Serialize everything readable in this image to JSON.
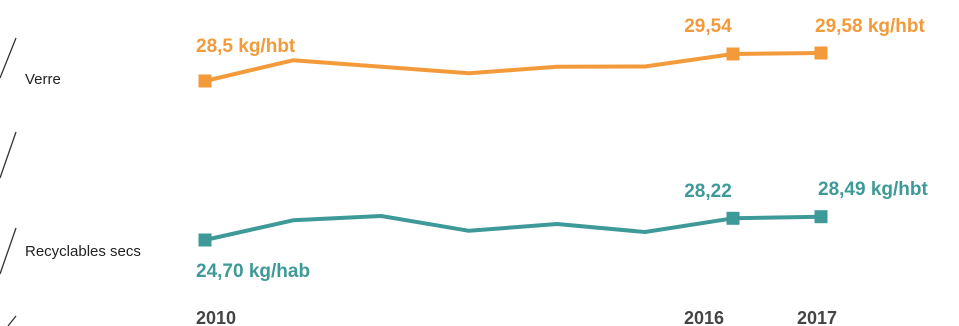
{
  "chart_data": {
    "type": "line",
    "x": [
      2010,
      2011,
      2012,
      2013,
      2014,
      2015,
      2016,
      2017
    ],
    "x_tick_labels": [
      "2010",
      "",
      "",
      "",
      "",
      "",
      "2016",
      "2017"
    ],
    "series": [
      {
        "name": "Verre",
        "color": "#f39a3b",
        "values": [
          28.5,
          29.3,
          29.05,
          28.8,
          29.05,
          29.06,
          29.54,
          29.58
        ],
        "markers": [
          0,
          6,
          7
        ],
        "labels": [
          "28,5 kg/hbt",
          "29,54",
          "29,58 kg/hbt"
        ]
      },
      {
        "name": "Recyclables secs",
        "color": "#3e9a98",
        "values": [
          24.7,
          27.9,
          28.6,
          26.2,
          27.3,
          26.0,
          28.22,
          28.49
        ],
        "markers": [
          0,
          6,
          7
        ],
        "labels": [
          "24,70 kg/hab",
          "28,22",
          "28,49 kg/hbt"
        ]
      }
    ],
    "title": "",
    "xlabel": "",
    "ylabel": "",
    "grid": false,
    "legend": "left"
  }
}
